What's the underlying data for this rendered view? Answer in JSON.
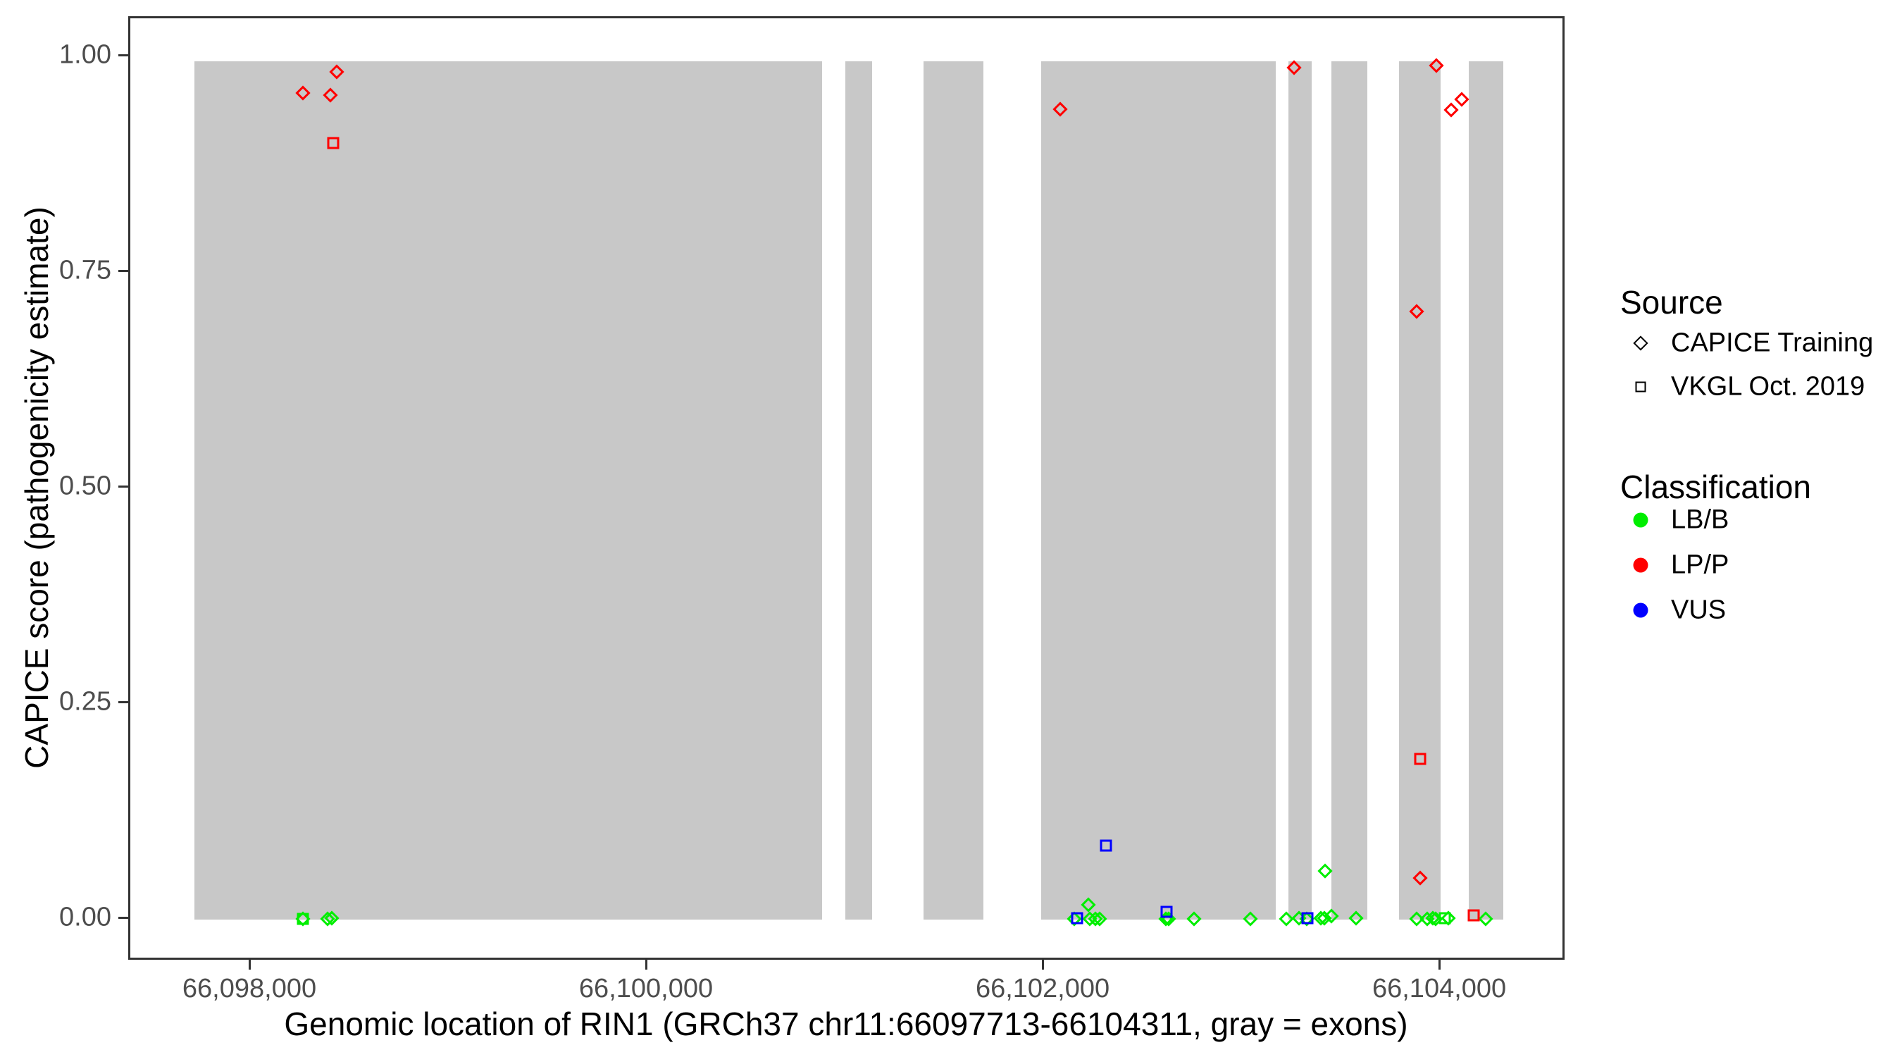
{
  "figure_name": "CAPICE score vs genomic location of RIN1",
  "chart_data": {
    "type": "scatter",
    "title": "",
    "xlabel": "Genomic location of RIN1 (GRCh37 chr11:66097713-66104311, gray = exons)",
    "ylabel": "CAPICE score (pathogenicity estimate)",
    "xlim": [
      66097389,
      66104632
    ],
    "ylim": [
      -0.049,
      1.045
    ],
    "x_ticks": [
      {
        "value": 66098000,
        "label": "66,098,000"
      },
      {
        "value": 66100000,
        "label": "66,100,000"
      },
      {
        "value": 66102000,
        "label": "66,102,000"
      },
      {
        "value": 66104000,
        "label": "66,104,000"
      }
    ],
    "y_ticks": [
      {
        "value": 0.0,
        "label": "0.00"
      },
      {
        "value": 0.25,
        "label": "0.25"
      },
      {
        "value": 0.5,
        "label": "0.50"
      },
      {
        "value": 0.75,
        "label": "0.75"
      },
      {
        "value": 1.0,
        "label": "1.00"
      }
    ],
    "exon_band_color": "#C8C8C8",
    "exon_band_score_range": [
      0,
      0.995
    ],
    "exon_regions": [
      [
        66097713,
        66100877
      ],
      [
        66100994,
        66101129
      ],
      [
        66101389,
        66101691
      ],
      [
        66101982,
        66103165
      ],
      [
        66103229,
        66103346
      ],
      [
        66103446,
        66103627
      ],
      [
        66103786,
        66103996
      ],
      [
        66104138,
        66104311
      ]
    ],
    "shape_by_source": {
      "CAPICE Training": "diamond",
      "VKGL Oct. 2019": "square"
    },
    "color_by_classification": {
      "LB/B": "#00EE00",
      "LP/P": "#FF0000",
      "VUS": "#0000FF"
    },
    "points": [
      {
        "x": 66098259,
        "y": 0.001,
        "source": "CAPICE Training",
        "classification": "LB/B"
      },
      {
        "x": 66098385,
        "y": 0.001,
        "source": "CAPICE Training",
        "classification": "LB/B"
      },
      {
        "x": 66098405,
        "y": 0.002,
        "source": "CAPICE Training",
        "classification": "LB/B"
      },
      {
        "x": 66102150,
        "y": 0.001,
        "source": "CAPICE Training",
        "classification": "LB/B"
      },
      {
        "x": 66102220,
        "y": 0.017,
        "source": "CAPICE Training",
        "classification": "LB/B"
      },
      {
        "x": 66102226,
        "y": 0.001,
        "source": "CAPICE Training",
        "classification": "LB/B"
      },
      {
        "x": 66102255,
        "y": 0.001,
        "source": "CAPICE Training",
        "classification": "LB/B"
      },
      {
        "x": 66102276,
        "y": 0.001,
        "source": "CAPICE Training",
        "classification": "LB/B"
      },
      {
        "x": 66102610,
        "y": 0.001,
        "source": "CAPICE Training",
        "classification": "LB/B"
      },
      {
        "x": 66102626,
        "y": 0.001,
        "source": "CAPICE Training",
        "classification": "LB/B"
      },
      {
        "x": 66102753,
        "y": 0.001,
        "source": "CAPICE Training",
        "classification": "LB/B"
      },
      {
        "x": 66103037,
        "y": 0.001,
        "source": "CAPICE Training",
        "classification": "LB/B"
      },
      {
        "x": 66103218,
        "y": 0.001,
        "source": "CAPICE Training",
        "classification": "LB/B"
      },
      {
        "x": 66103282,
        "y": 0.002,
        "source": "CAPICE Training",
        "classification": "LB/B"
      },
      {
        "x": 66103320,
        "y": 0.001,
        "source": "CAPICE Training",
        "classification": "LB/B"
      },
      {
        "x": 66103392,
        "y": 0.002,
        "source": "CAPICE Training",
        "classification": "LB/B"
      },
      {
        "x": 66103410,
        "y": 0.002,
        "source": "CAPICE Training",
        "classification": "LB/B"
      },
      {
        "x": 66103414,
        "y": 0.056,
        "source": "CAPICE Training",
        "classification": "LB/B"
      },
      {
        "x": 66103447,
        "y": 0.004,
        "source": "CAPICE Training",
        "classification": "LB/B"
      },
      {
        "x": 66103570,
        "y": 0.002,
        "source": "CAPICE Training",
        "classification": "LB/B"
      },
      {
        "x": 66103876,
        "y": 0.001,
        "source": "CAPICE Training",
        "classification": "LB/B"
      },
      {
        "x": 66103930,
        "y": 0.001,
        "source": "CAPICE Training",
        "classification": "LB/B"
      },
      {
        "x": 66103958,
        "y": 0.002,
        "source": "CAPICE Training",
        "classification": "LB/B"
      },
      {
        "x": 66103972,
        "y": 0.001,
        "source": "CAPICE Training",
        "classification": "LB/B"
      },
      {
        "x": 66104036,
        "y": 0.002,
        "source": "CAPICE Training",
        "classification": "LB/B"
      },
      {
        "x": 66104222,
        "y": 0.001,
        "source": "CAPICE Training",
        "classification": "LB/B"
      },
      {
        "x": 66098259,
        "y": 0.001,
        "source": "VKGL Oct. 2019",
        "classification": "LB/B"
      },
      {
        "x": 66104018,
        "y": 0.002,
        "source": "VKGL Oct. 2019",
        "classification": "LB/B"
      },
      {
        "x": 66102163,
        "y": 0.002,
        "source": "VKGL Oct. 2019",
        "classification": "VUS"
      },
      {
        "x": 66102309,
        "y": 0.086,
        "source": "VKGL Oct. 2019",
        "classification": "VUS"
      },
      {
        "x": 66102615,
        "y": 0.009,
        "source": "VKGL Oct. 2019",
        "classification": "VUS"
      },
      {
        "x": 66103325,
        "y": 0.002,
        "source": "VKGL Oct. 2019",
        "classification": "VUS"
      },
      {
        "x": 66098259,
        "y": 0.958,
        "source": "CAPICE Training",
        "classification": "LP/P"
      },
      {
        "x": 66098398,
        "y": 0.956,
        "source": "CAPICE Training",
        "classification": "LP/P"
      },
      {
        "x": 66098430,
        "y": 0.983,
        "source": "CAPICE Training",
        "classification": "LP/P"
      },
      {
        "x": 66102078,
        "y": 0.94,
        "source": "CAPICE Training",
        "classification": "LP/P"
      },
      {
        "x": 66103257,
        "y": 0.988,
        "source": "CAPICE Training",
        "classification": "LP/P"
      },
      {
        "x": 66103875,
        "y": 0.705,
        "source": "CAPICE Training",
        "classification": "LP/P"
      },
      {
        "x": 66103893,
        "y": 0.048,
        "source": "CAPICE Training",
        "classification": "LP/P"
      },
      {
        "x": 66103975,
        "y": 0.99,
        "source": "CAPICE Training",
        "classification": "LP/P"
      },
      {
        "x": 66104050,
        "y": 0.939,
        "source": "CAPICE Training",
        "classification": "LP/P"
      },
      {
        "x": 66104103,
        "y": 0.951,
        "source": "CAPICE Training",
        "classification": "LP/P"
      },
      {
        "x": 66098412,
        "y": 0.9,
        "source": "VKGL Oct. 2019",
        "classification": "LP/P"
      },
      {
        "x": 66103893,
        "y": 0.186,
        "source": "VKGL Oct. 2019",
        "classification": "LP/P"
      },
      {
        "x": 66104163,
        "y": 0.005,
        "source": "VKGL Oct. 2019",
        "classification": "LP/P"
      }
    ],
    "legend_position": "right",
    "grid": "off"
  },
  "legend": {
    "source": {
      "title": "Source",
      "items": [
        {
          "label": "CAPICE Training",
          "shape": "diamond"
        },
        {
          "label": "VKGL Oct. 2019",
          "shape": "square"
        }
      ]
    },
    "classification": {
      "title": "Classification",
      "items": [
        {
          "label": "LB/B",
          "color": "#00EE00"
        },
        {
          "label": "LP/P",
          "color": "#FF0000"
        },
        {
          "label": "VUS",
          "color": "#0000FF"
        }
      ]
    }
  }
}
